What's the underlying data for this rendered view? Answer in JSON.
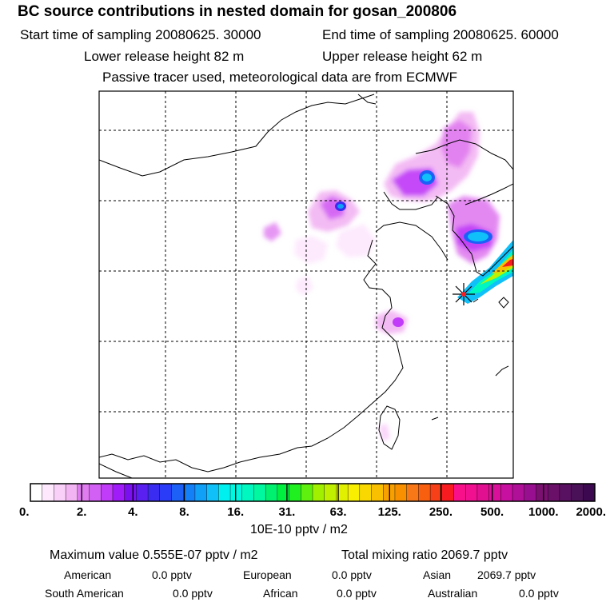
{
  "header": {
    "title": "BC  source contributions in nested domain for gosan_200806",
    "start_time": "Start time of sampling 20080625. 30000",
    "end_time": "End time of sampling 20080625. 60000",
    "lower_height": "Lower release height   82 m",
    "upper_height": "Upper release height   62 m",
    "tracer_note": "Passive tracer used, meteorological data are from ECMWF"
  },
  "colorbar": {
    "tick_labels": [
      "0.",
      "2.",
      "4.",
      "8.",
      "16.",
      "31.",
      "63.",
      "125.",
      "250.",
      "500.",
      "1000.",
      "2000."
    ],
    "colors": [
      "#ffffff",
      "#fde8fd",
      "#f8d0f8",
      "#f2b4f2",
      "#e07cf0",
      "#d260f4",
      "#c03cf8",
      "#a01cf8",
      "#7a10f0",
      "#5a20f0",
      "#3a2cf0",
      "#2a3cf8",
      "#1c60f8",
      "#1480f8",
      "#10a0f8",
      "#10c0f8",
      "#00f0f0",
      "#00f8e0",
      "#00f8c0",
      "#00f8a0",
      "#00f070",
      "#00f040",
      "#20f020",
      "#60f010",
      "#a0f000",
      "#c0f000",
      "#e0f000",
      "#f8f000",
      "#f8d800",
      "#f8c000",
      "#f8a000",
      "#f89000",
      "#f87818",
      "#f86010",
      "#f84018",
      "#f81c20",
      "#f8108a",
      "#f01090",
      "#e01090",
      "#d8109a",
      "#c810a0",
      "#b01098",
      "#981090",
      "#7a1070",
      "#6a1068",
      "#581060",
      "#4a1058",
      "#3c0850"
    ],
    "units": "10E-10 pptv / m2"
  },
  "summary": {
    "max_value": "Maximum value  0.555E-07 pptv / m2",
    "total_mixing": "Total mixing ratio     2069.7 pptv"
  },
  "contributions": [
    {
      "name": "American",
      "value": "0.0 pptv"
    },
    {
      "name": "European",
      "value": "0.0 pptv"
    },
    {
      "name": "Asian",
      "value": "2069.7 pptv"
    },
    {
      "name": "South American",
      "value": "0.0 pptv"
    },
    {
      "name": "African",
      "value": "0.0 pptv"
    },
    {
      "name": "Australian",
      "value": "0.0 pptv"
    }
  ]
}
